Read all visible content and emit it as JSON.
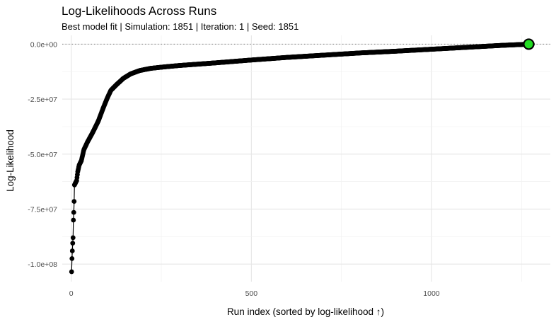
{
  "chart_data": {
    "type": "line",
    "title": "Log-Likelihoods Across Runs",
    "subtitle": "Best model fit | Simulation: 1851 | Iteration: 1 | Seed: 1851",
    "xlabel": "Run index (sorted by log-likelihood ↑)",
    "ylabel": "Log-Likelihood",
    "xlim": [
      -25,
      1330
    ],
    "ylim": [
      -108000000,
      4000000
    ],
    "x_ticks": [
      0,
      500,
      1000
    ],
    "x_tick_labels": [
      "0",
      "500",
      "1000"
    ],
    "y_ticks": [
      0,
      -25000000,
      -50000000,
      -75000000,
      -100000000
    ],
    "y_tick_labels": [
      "0.0e+00",
      "-2.5e+07",
      "-5.0e+07",
      "-7.5e+07",
      "-1.0e+08"
    ],
    "grid": true,
    "reference_line": {
      "y": 0,
      "style": "dotted"
    },
    "series": [
      {
        "color": "#000000",
        "marker": "circle",
        "n_points": 1280,
        "key_points": [
          [
            1,
            -103500000
          ],
          [
            2,
            -97500000
          ],
          [
            3,
            -94000000
          ],
          [
            4,
            -90500000
          ],
          [
            5,
            -88000000
          ],
          [
            6,
            -80000000
          ],
          [
            7,
            -76500000
          ],
          [
            8,
            -71500000
          ],
          [
            9,
            -64000000
          ],
          [
            12,
            -63000000
          ],
          [
            15,
            -62000000
          ],
          [
            18,
            -58000000
          ],
          [
            22,
            -55000000
          ],
          [
            28,
            -53000000
          ],
          [
            35,
            -48000000
          ],
          [
            45,
            -44500000
          ],
          [
            60,
            -40000000
          ],
          [
            75,
            -35000000
          ],
          [
            90,
            -28500000
          ],
          [
            100,
            -24500000
          ],
          [
            110,
            -21000000
          ],
          [
            125,
            -18500000
          ],
          [
            145,
            -15500000
          ],
          [
            165,
            -13500000
          ],
          [
            190,
            -12000000
          ],
          [
            220,
            -11000000
          ],
          [
            260,
            -10300000
          ],
          [
            300,
            -9700000
          ],
          [
            400,
            -8500000
          ],
          [
            500,
            -7200000
          ],
          [
            600,
            -6000000
          ],
          [
            700,
            -5000000
          ],
          [
            800,
            -4000000
          ],
          [
            900,
            -3200000
          ],
          [
            1000,
            -2300000
          ],
          [
            1100,
            -1400000
          ],
          [
            1200,
            -500000
          ],
          [
            1270,
            0
          ],
          [
            1280,
            0
          ]
        ]
      }
    ],
    "highlight": {
      "x": 1270,
      "y": 0,
      "color": "#22dd22"
    }
  }
}
